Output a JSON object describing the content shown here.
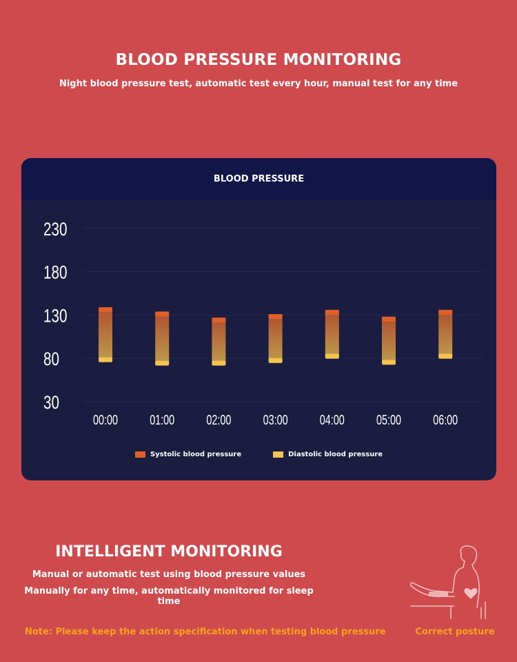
{
  "header": {
    "title": "BLOOD PRESSURE MONITORING",
    "subtitle": "Night blood pressure test, automatic test every hour, manual test for any time"
  },
  "chart_data": {
    "type": "bar",
    "title": "BLOOD PRESSURE",
    "categories": [
      "00:00",
      "01:00",
      "02:00",
      "03:00",
      "04:00",
      "05:00",
      "06:00"
    ],
    "series": [
      {
        "name": "Systolic blood pressure",
        "values": [
          139,
          134,
          127,
          131,
          136,
          128,
          136
        ]
      },
      {
        "name": "Diastolic blood pressure",
        "values": [
          78,
          74,
          74,
          77,
          82,
          75,
          82
        ]
      }
    ],
    "yticks": [
      30,
      80,
      130,
      180,
      230
    ],
    "ylim": [
      14,
      245
    ],
    "grid": true,
    "legend": "bottom-center",
    "colors": {
      "systolic": "#e0602a",
      "diastolic": "#f4c350"
    }
  },
  "bottom": {
    "title": "INTELLIGENT MONITORING",
    "line1": "Manual or automatic test using blood pressure values",
    "line2": "Manually for any time, automatically monitored for sleep time",
    "note": "Note: Please keep the action specification when testing blood pressure",
    "posture_label": "Correct posture"
  }
}
